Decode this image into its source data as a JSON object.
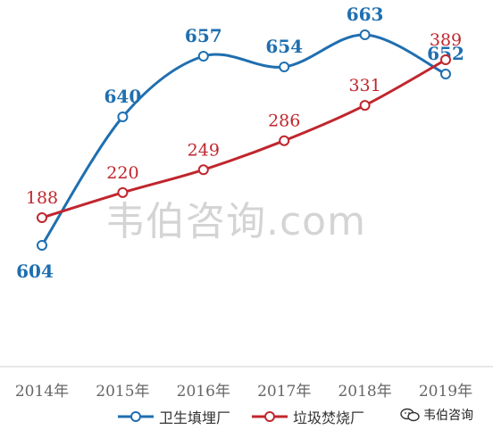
{
  "chart_data": {
    "type": "line",
    "categories": [
      "2014年",
      "2015年",
      "2016年",
      "2017年",
      "2018年",
      "2019年"
    ],
    "series": [
      {
        "name": "卫生填埋厂",
        "values": [
          604,
          640,
          657,
          654,
          663,
          652
        ],
        "color": "#1f6fb0"
      },
      {
        "name": "垃圾焚烧厂",
        "values": [
          188,
          220,
          249,
          286,
          331,
          389
        ],
        "color": "#c0262d"
      }
    ],
    "legend_position": "bottom",
    "grid": false
  },
  "watermark": "韦伯咨询.com",
  "brand": {
    "label": "韦伯咨询",
    "icon": "wechat-icon"
  }
}
